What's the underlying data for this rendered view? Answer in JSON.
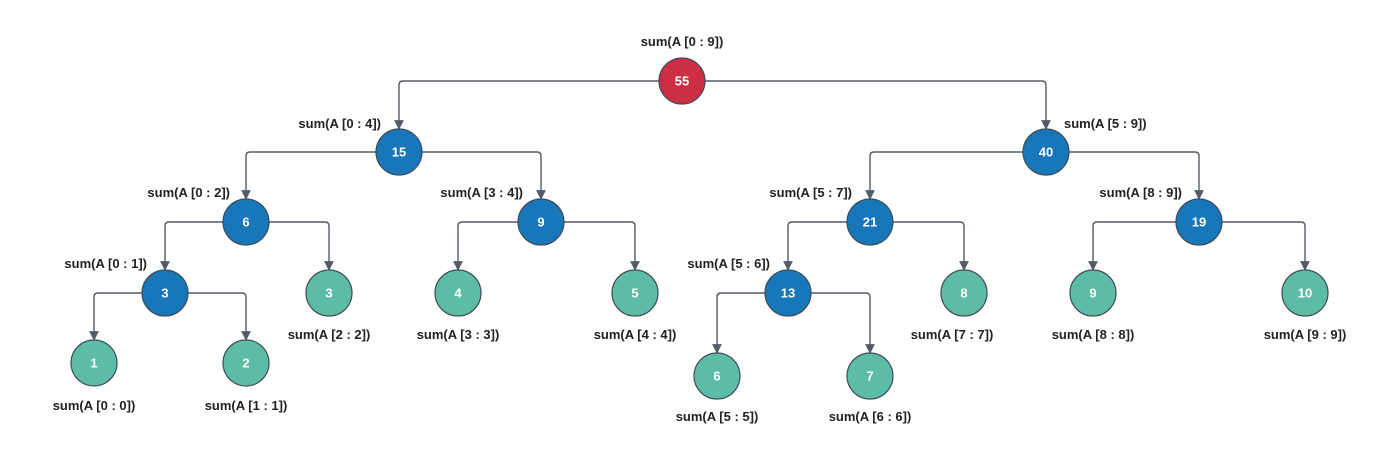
{
  "colors": {
    "root": "#cc2f44",
    "internal": "#1777b8",
    "leaf": "#5dbca6",
    "edge": "#555b66"
  },
  "nodes": [
    {
      "id": "n0_9",
      "value": "55",
      "label": "sum(A [0 : 9])",
      "kind": "root"
    },
    {
      "id": "n0_4",
      "value": "15",
      "label": "sum(A [0 : 4])",
      "kind": "internal"
    },
    {
      "id": "n5_9",
      "value": "40",
      "label": "sum(A [5 : 9])",
      "kind": "internal"
    },
    {
      "id": "n0_2",
      "value": "6",
      "label": "sum(A [0 : 2])",
      "kind": "internal"
    },
    {
      "id": "n3_4",
      "value": "9",
      "label": "sum(A [3 : 4])",
      "kind": "internal"
    },
    {
      "id": "n5_7",
      "value": "21",
      "label": "sum(A [5 : 7])",
      "kind": "internal"
    },
    {
      "id": "n8_9",
      "value": "19",
      "label": "sum(A [8 : 9])",
      "kind": "internal"
    },
    {
      "id": "n0_1",
      "value": "3",
      "label": "sum(A [0 : 1])",
      "kind": "internal"
    },
    {
      "id": "n2_2",
      "value": "3",
      "label": "sum(A [2 : 2])",
      "kind": "leaf"
    },
    {
      "id": "n3_3",
      "value": "4",
      "label": "sum(A [3 : 3])",
      "kind": "leaf"
    },
    {
      "id": "n4_4",
      "value": "5",
      "label": "sum(A [4 : 4])",
      "kind": "leaf"
    },
    {
      "id": "n5_6",
      "value": "13",
      "label": "sum(A [5 : 6])",
      "kind": "internal"
    },
    {
      "id": "n7_7",
      "value": "8",
      "label": "sum(A [7 : 7])",
      "kind": "leaf"
    },
    {
      "id": "n8_8",
      "value": "9",
      "label": "sum(A [8 : 8])",
      "kind": "leaf"
    },
    {
      "id": "n9_9",
      "value": "10",
      "label": "sum(A [9 : 9])",
      "kind": "leaf"
    },
    {
      "id": "n0_0",
      "value": "1",
      "label": "sum(A [0 : 0])",
      "kind": "leaf"
    },
    {
      "id": "n1_1",
      "value": "2",
      "label": "sum(A [1 : 1])",
      "kind": "leaf"
    },
    {
      "id": "n5_5",
      "value": "6",
      "label": "sum(A [5 : 5])",
      "kind": "leaf"
    },
    {
      "id": "n6_6",
      "value": "7",
      "label": "sum(A [6 : 6])",
      "kind": "leaf"
    }
  ],
  "edges": [
    {
      "from": "n0_9",
      "to": "n0_4"
    },
    {
      "from": "n0_9",
      "to": "n5_9"
    },
    {
      "from": "n0_4",
      "to": "n0_2"
    },
    {
      "from": "n0_4",
      "to": "n3_4"
    },
    {
      "from": "n5_9",
      "to": "n5_7"
    },
    {
      "from": "n5_9",
      "to": "n8_9"
    },
    {
      "from": "n0_2",
      "to": "n0_1"
    },
    {
      "from": "n0_2",
      "to": "n2_2"
    },
    {
      "from": "n3_4",
      "to": "n3_3"
    },
    {
      "from": "n3_4",
      "to": "n4_4"
    },
    {
      "from": "n5_7",
      "to": "n5_6"
    },
    {
      "from": "n5_7",
      "to": "n7_7"
    },
    {
      "from": "n8_9",
      "to": "n8_8"
    },
    {
      "from": "n8_9",
      "to": "n9_9"
    },
    {
      "from": "n0_1",
      "to": "n0_0"
    },
    {
      "from": "n0_1",
      "to": "n1_1"
    },
    {
      "from": "n5_6",
      "to": "n5_5"
    },
    {
      "from": "n5_6",
      "to": "n6_6"
    }
  ]
}
